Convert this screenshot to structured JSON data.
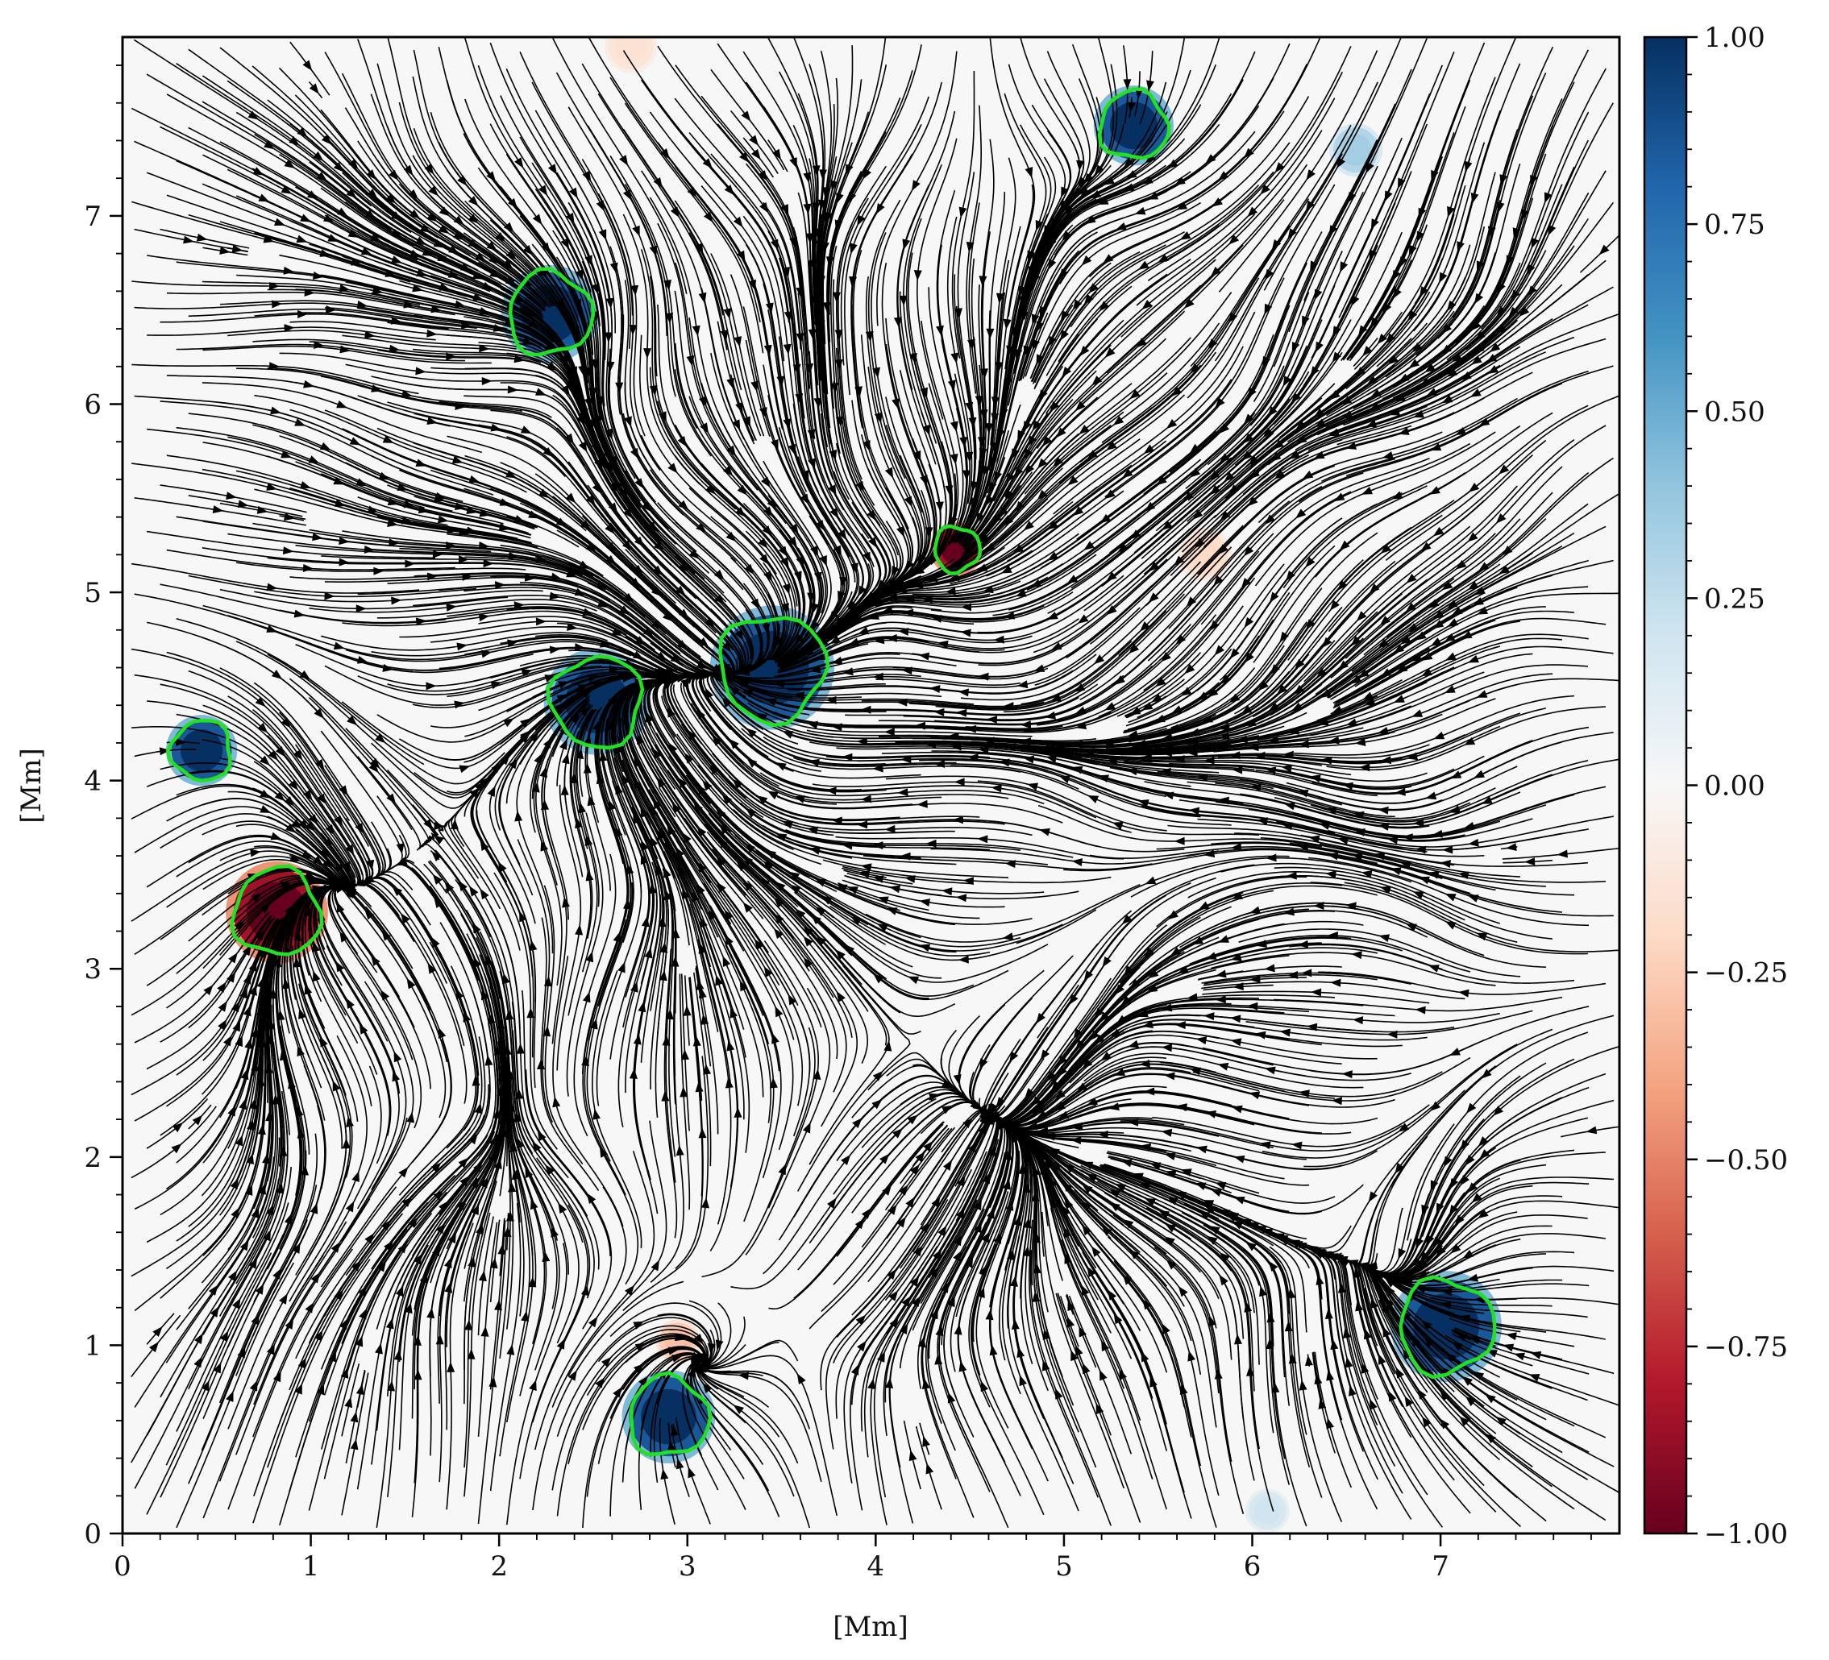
{
  "chart_data": {
    "type": "heatmap",
    "title": "",
    "xlabel": "[Mm]",
    "ylabel": "[Mm]",
    "xlim": [
      0,
      7.95
    ],
    "ylim": [
      0,
      7.95
    ],
    "xticks": [
      0,
      1,
      2,
      3,
      4,
      5,
      6,
      7
    ],
    "yticks": [
      0,
      1,
      2,
      3,
      4,
      5,
      6,
      7
    ],
    "grid": false,
    "overlay": "black streamlines of the horizontal flow field with arrowheads",
    "contour_color": "#22e022",
    "colorbar": {
      "colormap": "RdBu",
      "range": [
        -1.0,
        1.0
      ],
      "ticks": [
        1.0,
        0.75,
        0.5,
        0.25,
        0.0,
        -0.25,
        -0.5,
        -0.75,
        -1.0
      ],
      "tick_labels": [
        "1.00",
        "0.75",
        "0.50",
        "0.25",
        "0.00",
        "−0.25",
        "−0.50",
        "−0.75",
        "−1.00"
      ],
      "low_color": "#67001f",
      "mid_color": "#f7f7f7",
      "high_color": "#053061"
    },
    "features": [
      {
        "x": 5.37,
        "y": 7.48,
        "value": 1.0,
        "radius": 0.18,
        "contour": true
      },
      {
        "x": 2.27,
        "y": 6.48,
        "value": 1.0,
        "radius": 0.22,
        "contour": true
      },
      {
        "x": 4.43,
        "y": 5.23,
        "value": -1.0,
        "radius": 0.12,
        "contour": true
      },
      {
        "x": 3.45,
        "y": 4.6,
        "value": 1.0,
        "radius": 0.28,
        "contour": true
      },
      {
        "x": 2.52,
        "y": 4.42,
        "value": 1.0,
        "radius": 0.24,
        "contour": true
      },
      {
        "x": 0.42,
        "y": 4.16,
        "value": 1.0,
        "radius": 0.16,
        "contour": true
      },
      {
        "x": 0.82,
        "y": 3.3,
        "value": -1.0,
        "radius": 0.23,
        "contour": true
      },
      {
        "x": 2.9,
        "y": 0.62,
        "value": 1.0,
        "radius": 0.21,
        "contour": true
      },
      {
        "x": 7.03,
        "y": 1.1,
        "value": 1.0,
        "radius": 0.25,
        "contour": true
      },
      {
        "x": 6.55,
        "y": 7.35,
        "value": 0.35,
        "radius": 0.12,
        "contour": false
      },
      {
        "x": 5.75,
        "y": 5.2,
        "value": -0.2,
        "radius": 0.12,
        "contour": false
      },
      {
        "x": 2.95,
        "y": 1.02,
        "value": -0.3,
        "radius": 0.1,
        "contour": false
      },
      {
        "x": 6.08,
        "y": 0.12,
        "value": 0.2,
        "radius": 0.1,
        "contour": false
      },
      {
        "x": 2.7,
        "y": 7.9,
        "value": -0.15,
        "radius": 0.12,
        "contour": false
      }
    ]
  }
}
